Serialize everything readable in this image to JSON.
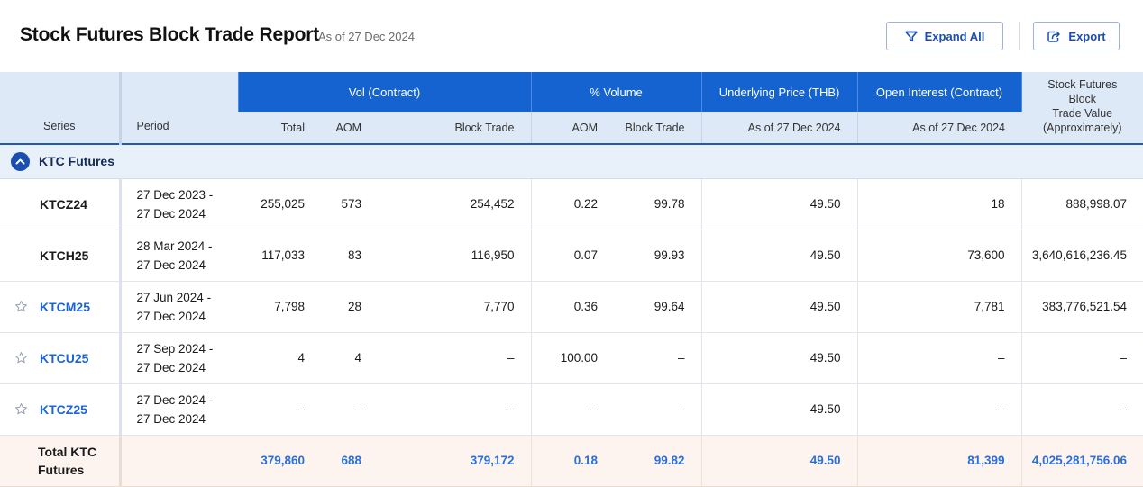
{
  "header": {
    "title": "Stock Futures Block Trade Report",
    "as_of": "As of 27 Dec 2024",
    "expand_all_label": "Expand All",
    "export_label": "Export"
  },
  "table": {
    "col_series": "Series",
    "col_period": "Period",
    "group_vol": "Vol (Contract)",
    "group_pct": "% Volume",
    "group_underlying": "Underlying Price (THB)",
    "group_oi": "Open Interest (Contract)",
    "sub_total": "Total",
    "sub_aom": "AOM",
    "sub_block": "Block Trade",
    "sub_pct_aom": "AOM",
    "sub_pct_block": "Block Trade",
    "sub_underlying_asof": "As of 27 Dec 2024",
    "sub_oi_asof": "As of 27 Dec 2024",
    "col_sfbt_line1": "Stock Futures Block",
    "col_sfbt_line2": "Trade Value (Approximately)"
  },
  "group": {
    "label": "KTC Futures",
    "expanded": true
  },
  "rows": [
    {
      "series": "KTCZ24",
      "starred": false,
      "link": false,
      "period_start": "27 Dec 2023 -",
      "period_end": "27 Dec 2024",
      "vol_total": "255,025",
      "vol_aom": "573",
      "vol_block": "254,452",
      "pct_aom": "0.22",
      "pct_block": "99.78",
      "underlying": "49.50",
      "oi": "18",
      "sfbt_value": "888,998.07"
    },
    {
      "series": "KTCH25",
      "starred": false,
      "link": false,
      "period_start": "28 Mar 2024 -",
      "period_end": "27 Dec 2024",
      "vol_total": "117,033",
      "vol_aom": "83",
      "vol_block": "116,950",
      "pct_aom": "0.07",
      "pct_block": "99.93",
      "underlying": "49.50",
      "oi": "73,600",
      "sfbt_value": "3,640,616,236.45"
    },
    {
      "series": "KTCM25",
      "starred": true,
      "link": true,
      "period_start": "27 Jun 2024 -",
      "period_end": "27 Dec 2024",
      "vol_total": "7,798",
      "vol_aom": "28",
      "vol_block": "7,770",
      "pct_aom": "0.36",
      "pct_block": "99.64",
      "underlying": "49.50",
      "oi": "7,781",
      "sfbt_value": "383,776,521.54"
    },
    {
      "series": "KTCU25",
      "starred": true,
      "link": true,
      "period_start": "27 Sep 2024 -",
      "period_end": "27 Dec 2024",
      "vol_total": "4",
      "vol_aom": "4",
      "vol_block": "–",
      "pct_aom": "100.00",
      "pct_block": "–",
      "underlying": "49.50",
      "oi": "–",
      "sfbt_value": "–"
    },
    {
      "series": "KTCZ25",
      "starred": true,
      "link": true,
      "period_start": "27 Dec 2024 -",
      "period_end": "27 Dec 2024",
      "vol_total": "–",
      "vol_aom": "–",
      "vol_block": "–",
      "pct_aom": "–",
      "pct_block": "–",
      "underlying": "49.50",
      "oi": "–",
      "sfbt_value": "–"
    }
  ],
  "total": {
    "label_line1": "Total KTC",
    "label_line2": "Futures",
    "vol_total": "379,860",
    "vol_aom": "688",
    "vol_block": "379,172",
    "pct_aom": "0.18",
    "pct_block": "99.82",
    "underlying": "49.50",
    "oi": "81,399",
    "sfbt_value": "4,025,281,756.06"
  },
  "icons": {
    "expand": "filter-funnel-icon",
    "export": "export-icon",
    "group_toggle": "chevron-up-icon",
    "row_favorite": "star-outline-icon"
  },
  "colors": {
    "primary_blue": "#1563d1",
    "header_bg": "#dde9f7",
    "link": "#1a63d8",
    "total_bg": "#fdf4ef"
  }
}
